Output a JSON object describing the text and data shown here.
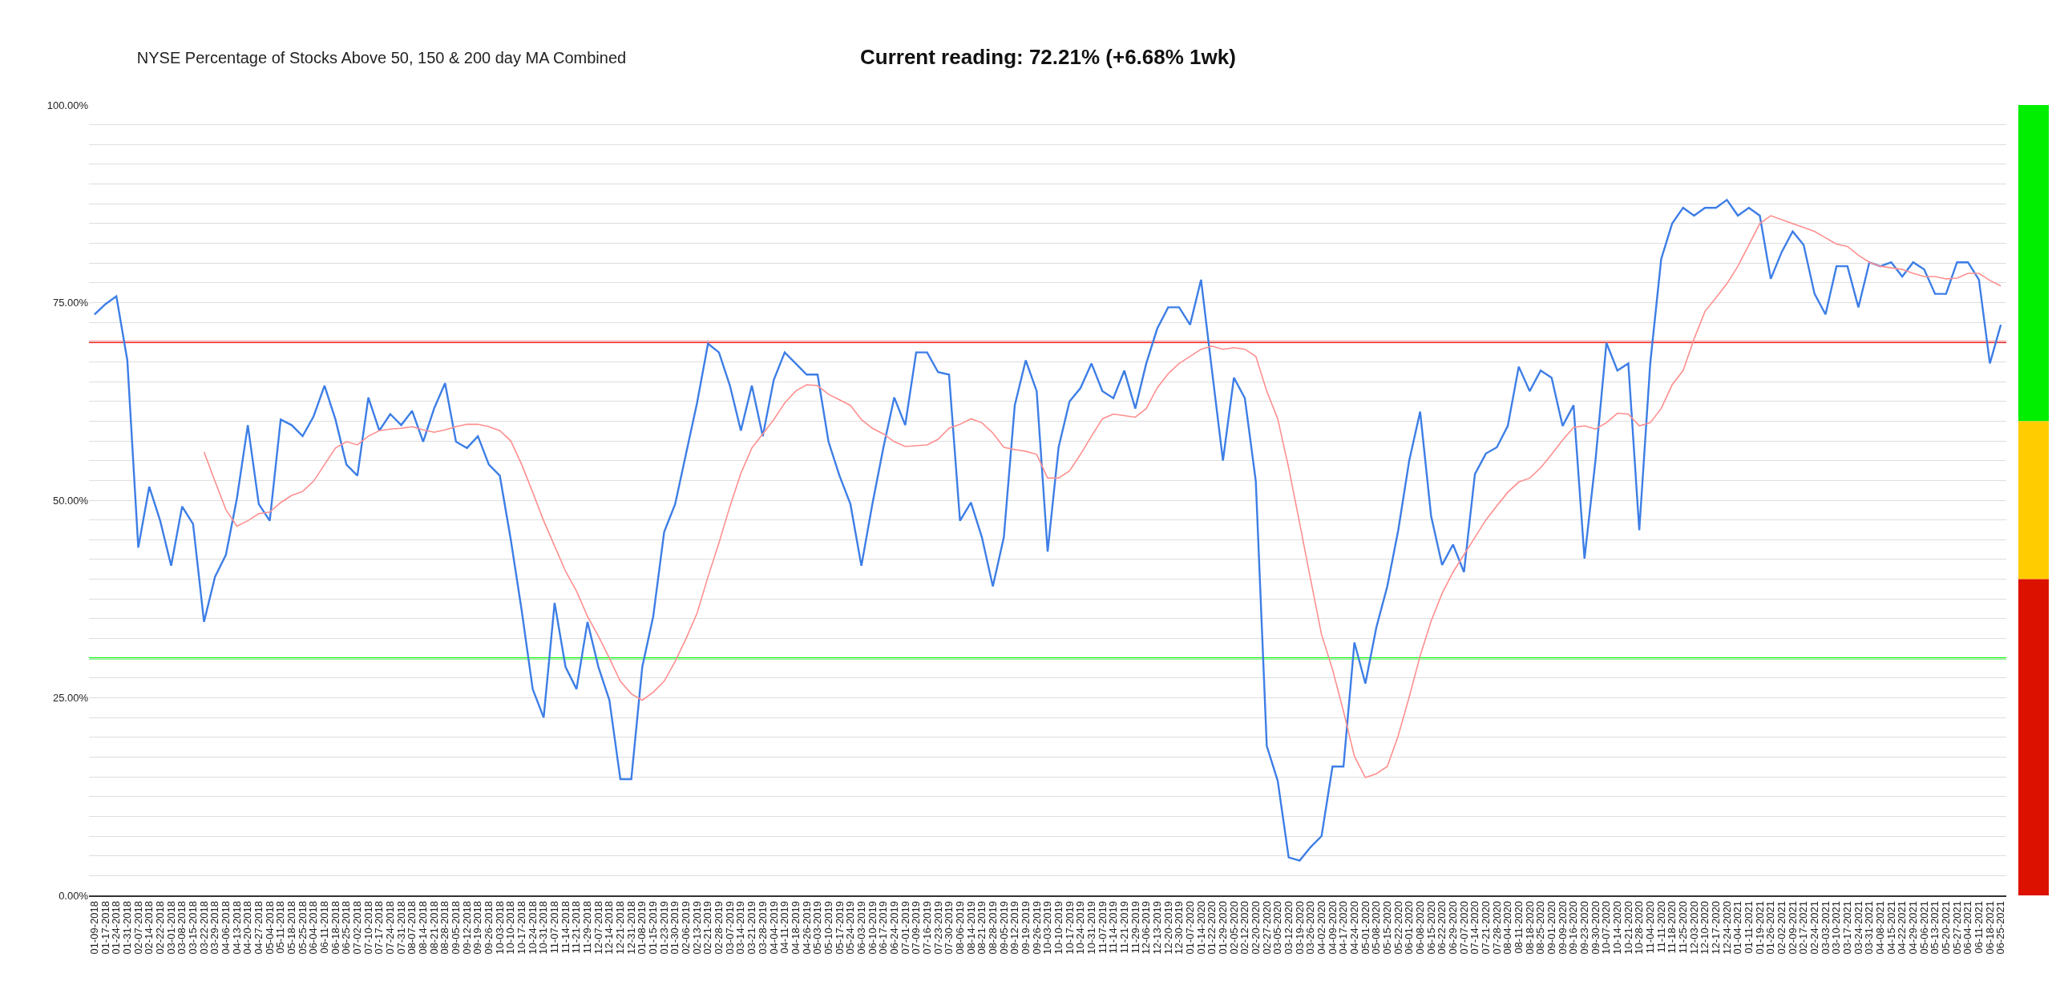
{
  "chart_data": {
    "type": "line",
    "title": "NYSE Percentage of Stocks Above 50, 150 & 200 day MA Combined",
    "subtitle": "Current reading: 72.21% (+6.68% 1wk)",
    "categories": [
      "01-09-2018",
      "01-17-2018",
      "01-24-2018",
      "01-31-2018",
      "02-07-2018",
      "02-14-2018",
      "02-22-2018",
      "03-01-2018",
      "03-08-2018",
      "03-15-2018",
      "03-22-2018",
      "03-29-2018",
      "04-06-2018",
      "04-13-2018",
      "04-20-2018",
      "04-27-2018",
      "05-04-2018",
      "05-11-2018",
      "05-18-2018",
      "05-25-2018",
      "06-04-2018",
      "06-11-2018",
      "06-18-2018",
      "06-25-2018",
      "07-02-2018",
      "07-10-2018",
      "07-17-2018",
      "07-24-2018",
      "07-31-2018",
      "08-07-2018",
      "08-14-2018",
      "08-21-2018",
      "08-28-2018",
      "09-05-2018",
      "09-12-2018",
      "09-19-2018",
      "09-26-2018",
      "10-03-2018",
      "10-10-2018",
      "10-17-2018",
      "10-24-2018",
      "10-31-2018",
      "11-07-2018",
      "11-14-2018",
      "11-21-2018",
      "11-29-2018",
      "12-07-2018",
      "12-14-2018",
      "12-21-2018",
      "12-31-2018",
      "01-08-2019",
      "01-15-2019",
      "01-23-2019",
      "01-30-2019",
      "02-06-2019",
      "02-13-2019",
      "02-21-2019",
      "02-28-2019",
      "03-07-2019",
      "03-14-2019",
      "03-21-2019",
      "03-28-2019",
      "04-04-2019",
      "04-11-2019",
      "04-18-2019",
      "04-26-2019",
      "05-03-2019",
      "05-10-2019",
      "05-17-2019",
      "05-24-2019",
      "06-03-2019",
      "06-10-2019",
      "06-17-2019",
      "06-24-2019",
      "07-01-2019",
      "07-09-2019",
      "07-16-2019",
      "07-23-2019",
      "07-30-2019",
      "08-06-2019",
      "08-14-2019",
      "08-21-2019",
      "08-28-2019",
      "09-05-2019",
      "09-12-2019",
      "09-19-2019",
      "09-26-2019",
      "10-03-2019",
      "10-10-2019",
      "10-17-2019",
      "10-24-2019",
      "10-31-2019",
      "11-07-2019",
      "11-14-2019",
      "11-21-2019",
      "11-29-2019",
      "12-06-2019",
      "12-13-2019",
      "12-20-2019",
      "12-30-2019",
      "01-07-2020",
      "01-14-2020",
      "01-22-2020",
      "01-29-2020",
      "02-05-2020",
      "02-12-2020",
      "02-20-2020",
      "02-27-2020",
      "03-05-2020",
      "03-12-2020",
      "03-19-2020",
      "03-26-2020",
      "04-02-2020",
      "04-09-2020",
      "04-17-2020",
      "04-24-2020",
      "05-01-2020",
      "05-08-2020",
      "05-15-2020",
      "05-22-2020",
      "06-01-2020",
      "06-08-2020",
      "06-15-2020",
      "06-22-2020",
      "06-29-2020",
      "07-07-2020",
      "07-14-2020",
      "07-21-2020",
      "07-28-2020",
      "08-04-2020",
      "08-11-2020",
      "08-18-2020",
      "08-25-2020",
      "09-01-2020",
      "09-09-2020",
      "09-16-2020",
      "09-23-2020",
      "09-30-2020",
      "10-07-2020",
      "10-14-2020",
      "10-21-2020",
      "10-28-2020",
      "11-04-2020",
      "11-11-2020",
      "11-18-2020",
      "11-25-2020",
      "12-03-2020",
      "12-10-2020",
      "12-17-2020",
      "12-24-2020",
      "01-04-2021",
      "01-11-2021",
      "01-19-2021",
      "01-26-2021",
      "02-02-2021",
      "02-09-2021",
      "02-17-2021",
      "02-24-2021",
      "03-03-2021",
      "03-10-2021",
      "03-17-2021",
      "03-24-2021",
      "03-31-2021",
      "04-08-2021",
      "04-15-2021",
      "04-22-2021",
      "04-29-2021",
      "05-06-2021",
      "05-13-2021",
      "05-20-2021",
      "05-27-2021",
      "06-04-2021",
      "06-11-2021",
      "06-18-2021",
      "06-25-2021"
    ],
    "series": [
      {
        "color": "#3d7ee6",
        "values": [
          73.5,
          74.8,
          75.8,
          67.7,
          44,
          51.7,
          47.4,
          41.7,
          49.2,
          47,
          34.6,
          40.3,
          43.1,
          50.2,
          59.5,
          49.5,
          47.4,
          60.2,
          59.5,
          58.1,
          60.6,
          64.5,
          60.2,
          54.5,
          53.1,
          63.0,
          58.8,
          60.9,
          59.5,
          61.3,
          57.4,
          61.6,
          64.8,
          57.4,
          56.6,
          58.1,
          54.5,
          53.1,
          45,
          36,
          26.1,
          22.5,
          37,
          28.9,
          26.1,
          34.6,
          28.9,
          24.7,
          14.7,
          14.7,
          28.9,
          35.3,
          46.0,
          49.5,
          55.9,
          62.3,
          69.8,
          68.7,
          64.5,
          58.8,
          64.5,
          58.1,
          65.2,
          68.7,
          67.3,
          65.9,
          65.9,
          57.4,
          53.1,
          49.5,
          41.7,
          49.5,
          56.6,
          63.0,
          59.5,
          68.7,
          68.7,
          66.2,
          65.9,
          47.4,
          49.7,
          45.3,
          39.1,
          45.3,
          62.0,
          67.7,
          63.8,
          43.5,
          56.7,
          62.5,
          64.2,
          67.3,
          63.8,
          62.9,
          66.4,
          61.6,
          67.3,
          71.7,
          74.4,
          74.4,
          72.2,
          77.9,
          66.4,
          55.0,
          65.5,
          62.9,
          52.4,
          18.9,
          14.5,
          4.8,
          4.4,
          6.1,
          7.5,
          16.3,
          16.3,
          32,
          26.8,
          33.9,
          39.1,
          46.2,
          55.0,
          61.2,
          48.0,
          41.8,
          44.4,
          40.9,
          53.3,
          55.9,
          56.7,
          59.4,
          66.9,
          63.8,
          66.4,
          65.5,
          59.4,
          62.0,
          42.6,
          55.0,
          69.9,
          66.4,
          67.3,
          46.2,
          67.3,
          80.5,
          85,
          87,
          86,
          87,
          87,
          88,
          86,
          87,
          86,
          78,
          81.4,
          84,
          82.3,
          76.1,
          73.5,
          79.6,
          79.6,
          74.4,
          80.1,
          79.6,
          80.1,
          78.3,
          80.1,
          79.2,
          76.1,
          76.1,
          80.1,
          80.1,
          77.9,
          67.3,
          72.2
        ]
      },
      {
        "color": "#ff8f8f",
        "values": [
          null,
          null,
          null,
          null,
          null,
          null,
          null,
          null,
          null,
          null,
          56.1,
          52.4,
          48.8,
          46.7,
          47.4,
          48.3,
          48.5,
          49.7,
          50.6,
          51.1,
          52.4,
          54.5,
          56.6,
          57.4,
          57.0,
          58.1,
          58.8,
          59.0,
          59.1,
          59.3,
          58.9,
          58.6,
          58.9,
          59.3,
          59.6,
          59.6,
          59.3,
          58.8,
          57.5,
          54.5,
          51.0,
          47.4,
          44.2,
          41.0,
          38.5,
          35.3,
          32.8,
          30.0,
          27.1,
          25.5,
          24.7,
          25.7,
          27.1,
          29.6,
          32.5,
          35.7,
          40.3,
          44.6,
          49.2,
          53.4,
          56.6,
          58.4,
          60.2,
          62.3,
          63.8,
          64.6,
          64.5,
          63.4,
          62.7,
          62.0,
          60.2,
          59.1,
          58.4,
          57.4,
          56.8,
          56.9,
          57.0,
          57.7,
          59.1,
          59.6,
          60.3,
          59.8,
          58.5,
          56.7,
          56.4,
          56.2,
          55.8,
          52.8,
          52.8,
          53.7,
          55.8,
          58.1,
          60.3,
          60.9,
          60.7,
          60.5,
          61.6,
          64.2,
          66.0,
          67.3,
          68.2,
          69.1,
          69.5,
          69.1,
          69.3,
          69.1,
          68.2,
          63.8,
          60.3,
          54.1,
          47.1,
          40.0,
          33.0,
          28.6,
          23.3,
          17.6,
          14.9,
          15.4,
          16.3,
          20.2,
          25.1,
          30.3,
          34.7,
          38.2,
          40.9,
          43.1,
          45.3,
          47.5,
          49.3,
          51.0,
          52.3,
          52.8,
          54.1,
          55.8,
          57.6,
          59.2,
          59.4,
          59.0,
          59.8,
          61.0,
          60.9,
          59.4,
          59.8,
          61.6,
          64.6,
          66.4,
          70.4,
          73.9,
          75.6,
          77.4,
          79.6,
          82.3,
          85,
          86,
          85.5,
          85,
          84.5,
          84,
          83.2,
          82.4,
          82.1,
          81.0,
          80.1,
          79.6,
          79.4,
          79.2,
          78.7,
          78.3,
          78.3,
          78.0,
          78.1,
          78.7,
          78.7,
          77.8,
          77.1
        ]
      }
    ],
    "ylim": [
      0,
      100
    ],
    "yticks": [
      {
        "value": 0,
        "label": "0.00%"
      },
      {
        "value": 2.5,
        "label": null
      },
      {
        "value": 5,
        "label": null
      },
      {
        "value": 7.5,
        "label": null
      },
      {
        "value": 10,
        "label": null
      },
      {
        "value": 12.5,
        "label": null
      },
      {
        "value": 15,
        "label": null
      },
      {
        "value": 17.5,
        "label": null
      },
      {
        "value": 20,
        "label": null
      },
      {
        "value": 22.5,
        "label": null
      },
      {
        "value": 25,
        "label": "25.00%"
      },
      {
        "value": 27.5,
        "label": null
      },
      {
        "value": 30,
        "label": null
      },
      {
        "value": 32.5,
        "label": null
      },
      {
        "value": 35,
        "label": null
      },
      {
        "value": 37.5,
        "label": null
      },
      {
        "value": 40,
        "label": null
      },
      {
        "value": 42.5,
        "label": null
      },
      {
        "value": 45,
        "label": null
      },
      {
        "value": 47.5,
        "label": null
      },
      {
        "value": 50,
        "label": "50.00%"
      },
      {
        "value": 52.5,
        "label": null
      },
      {
        "value": 55,
        "label": null
      },
      {
        "value": 57.5,
        "label": null
      },
      {
        "value": 60,
        "label": null
      },
      {
        "value": 62.5,
        "label": null
      },
      {
        "value": 65,
        "label": null
      },
      {
        "value": 67.5,
        "label": null
      },
      {
        "value": 70,
        "label": null
      },
      {
        "value": 72.5,
        "label": null
      },
      {
        "value": 75,
        "label": "75.00%"
      },
      {
        "value": 77.5,
        "label": null
      },
      {
        "value": 80,
        "label": null
      },
      {
        "value": 82.5,
        "label": null
      },
      {
        "value": 85,
        "label": null
      },
      {
        "value": 87.5,
        "label": null
      },
      {
        "value": 90,
        "label": null
      },
      {
        "value": 92.5,
        "label": null
      },
      {
        "value": 95,
        "label": null
      },
      {
        "value": 97.5,
        "label": null
      },
      {
        "value": 100,
        "label": "100.00%"
      }
    ],
    "ref_lines": [
      {
        "axis": "y",
        "value": 70,
        "color": "#ff0000"
      },
      {
        "axis": "y",
        "value": 30,
        "color": "#00ff00"
      }
    ],
    "grid": "y",
    "marker": "none",
    "line_style": "solid"
  }
}
